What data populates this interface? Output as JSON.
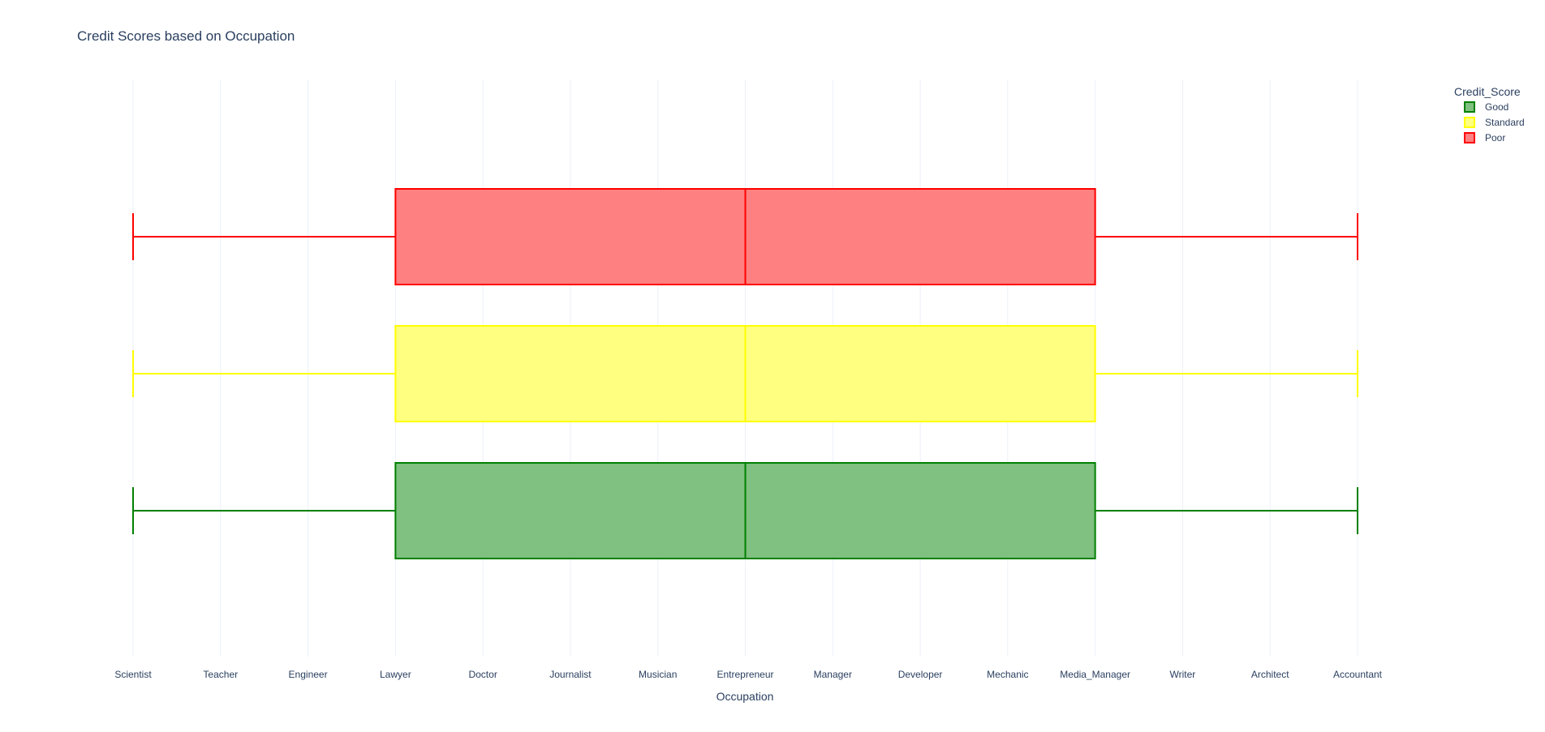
{
  "chart_data": {
    "type": "box",
    "orientation": "horizontal",
    "title": "Credit Scores based on Occupation",
    "xlabel": "Occupation",
    "ylabel": "",
    "categories": [
      "Scientist",
      "Teacher",
      "Engineer",
      "Lawyer",
      "Doctor",
      "Journalist",
      "Musician",
      "Entrepreneur",
      "Manager",
      "Developer",
      "Mechanic",
      "Media_Manager",
      "Writer",
      "Architect",
      "Accountant"
    ],
    "grid": true,
    "legend": {
      "title": "Credit_Score",
      "placement": "top-right"
    },
    "series": [
      {
        "name": "Good",
        "color": "#008000",
        "fill": "#80c080",
        "min": "Scientist",
        "q1": "Lawyer",
        "median": "Entrepreneur",
        "q3": "Media_Manager",
        "max": "Accountant"
      },
      {
        "name": "Standard",
        "color": "#ffff00",
        "fill": "#ffff80",
        "min": "Scientist",
        "q1": "Lawyer",
        "median": "Entrepreneur",
        "q3": "Media_Manager",
        "max": "Accountant"
      },
      {
        "name": "Poor",
        "color": "#ff0000",
        "fill": "#ff8080",
        "min": "Scientist",
        "q1": "Lawyer",
        "median": "Entrepreneur",
        "q3": "Media_Manager",
        "max": "Accountant"
      }
    ]
  }
}
